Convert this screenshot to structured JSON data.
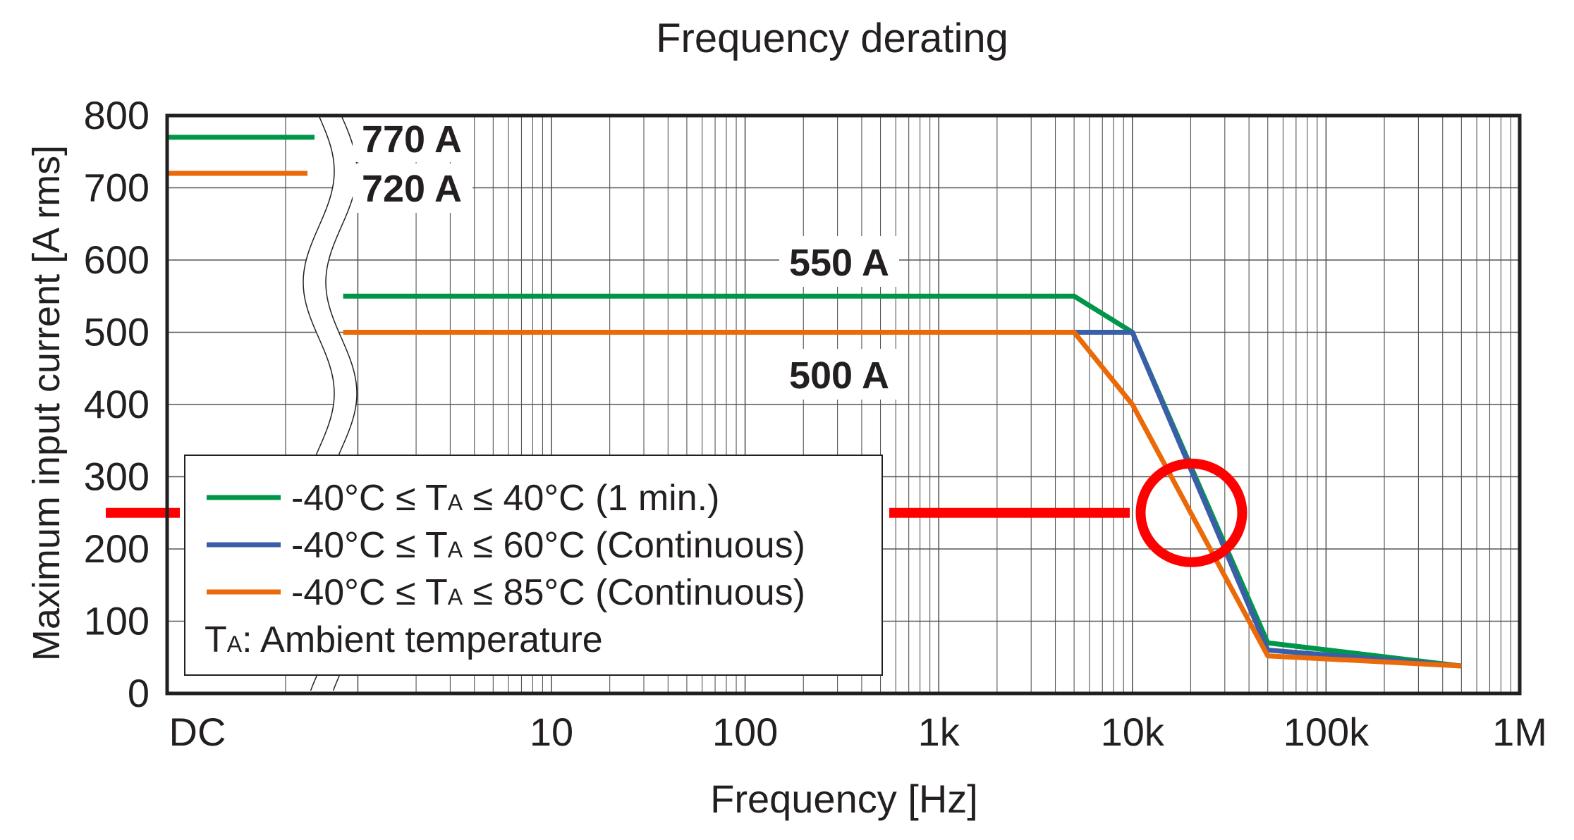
{
  "chart_data": {
    "type": "line",
    "title": "Frequency derating",
    "xlabel": "Frequency [Hz]",
    "ylabel": "Maximum input current [A rms]",
    "x_scale": "log",
    "xlim": [
      0.84,
      1000000
    ],
    "ylim": [
      0,
      800
    ],
    "grid": true,
    "y_ticks": [
      0,
      100,
      200,
      300,
      400,
      500,
      600,
      700,
      800
    ],
    "y_tick_labels": [
      "0",
      "100",
      "200",
      "300",
      "400",
      "500",
      "600",
      "700",
      "800"
    ],
    "x_ticks": [
      10,
      100,
      1000,
      10000,
      100000,
      1000000
    ],
    "x_tick_labels": [
      "10",
      "100",
      "1k",
      "10k",
      "100k",
      "1M"
    ],
    "dc_label": "DC",
    "series": [
      {
        "name": "-40°C ≤ TA ≤ 40°C (1 min.)",
        "color": "#00964a",
        "dc_value": 770,
        "points": [
          [
            0.84,
            550
          ],
          [
            5000,
            550
          ],
          [
            10000,
            500
          ],
          [
            50000,
            70
          ],
          [
            500000,
            38
          ]
        ]
      },
      {
        "name": "-40°C ≤ TA ≤ 60°C (Continuous)",
        "color": "#3a5fa8",
        "dc_value": null,
        "points": [
          [
            5000,
            500
          ],
          [
            10000,
            500
          ],
          [
            50000,
            60
          ],
          [
            500000,
            38
          ]
        ]
      },
      {
        "name": "-40°C ≤ TA ≤ 85°C (Continuous)",
        "color": "#ea6a0a",
        "dc_value": 720,
        "points": [
          [
            0.84,
            500
          ],
          [
            5000,
            500
          ],
          [
            10000,
            400
          ],
          [
            50000,
            52
          ],
          [
            500000,
            38
          ]
        ]
      }
    ],
    "legend": {
      "placement": "bottom-left",
      "entries": [
        {
          "pre": "-40°C ≤ T",
          "sub": "A",
          "post": " ≤ 40°C (1 min.)"
        },
        {
          "pre": "-40°C ≤ T",
          "sub": "A",
          "post": " ≤ 60°C (Continuous)"
        },
        {
          "pre": "-40°C ≤ T",
          "sub": "A",
          "post": " ≤ 85°C (Continuous)"
        }
      ],
      "note": {
        "pre": "T",
        "sub": "A",
        "post": ": Ambient temperature"
      }
    },
    "annotations": {
      "value_labels": [
        "770 A",
        "720 A",
        "550 A",
        "500 A"
      ],
      "highlight_level": 250,
      "highlight_circle_center": [
        20000,
        250
      ],
      "highlight_color": "#ff0000"
    }
  }
}
